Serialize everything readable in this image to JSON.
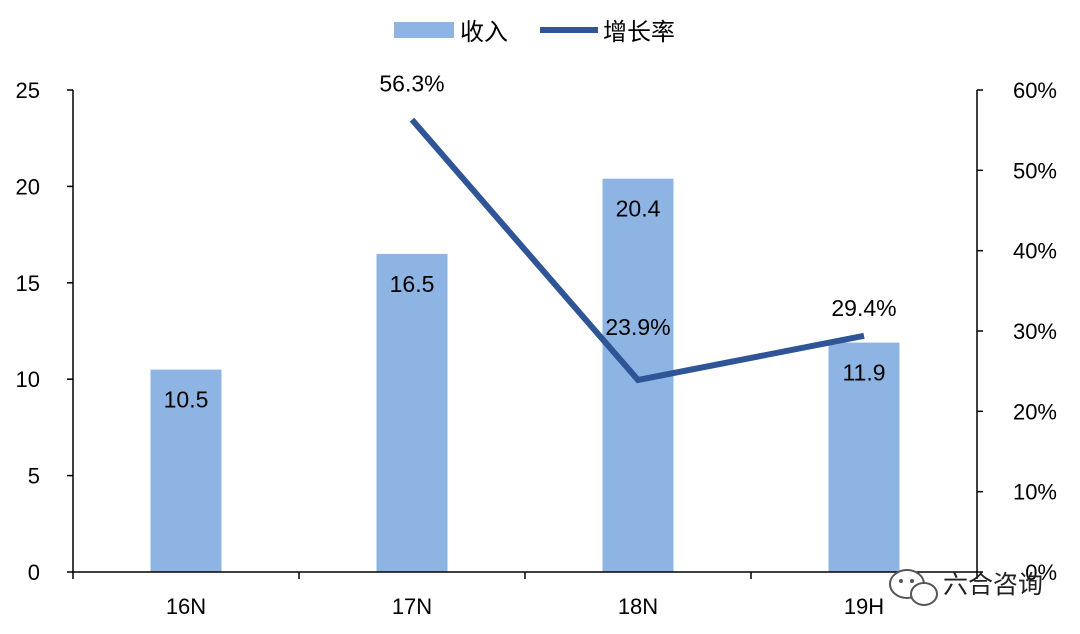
{
  "chart_data": {
    "type": "bar+line",
    "categories": [
      "16N",
      "17N",
      "18N",
      "19H"
    ],
    "series": [
      {
        "name": "收入",
        "type": "bar",
        "axis": "left",
        "values": [
          10.5,
          16.5,
          20.4,
          11.9
        ],
        "data_labels": [
          "10.5",
          "16.5",
          "20.4",
          "11.9"
        ]
      },
      {
        "name": "增长率",
        "type": "line",
        "axis": "right",
        "values": [
          null,
          0.563,
          0.239,
          0.294
        ],
        "data_labels": [
          "",
          "56.3%",
          "23.9%",
          "29.4%"
        ]
      }
    ],
    "left_axis": {
      "ylim": [
        0,
        25
      ],
      "ticks": [
        "0",
        "5",
        "10",
        "15",
        "20",
        "25"
      ]
    },
    "right_axis": {
      "ylim": [
        0,
        0.6
      ],
      "ticks": [
        "0%",
        "10%",
        "20%",
        "30%",
        "40%",
        "50%",
        "60%"
      ]
    },
    "legend": "top-center",
    "grid": false
  },
  "colors": {
    "bar": "#8EB4E3",
    "line": "#2F5597",
    "axis": "#000000"
  },
  "watermark": {
    "text": "六合咨询",
    "icon": "wechat-icon"
  }
}
